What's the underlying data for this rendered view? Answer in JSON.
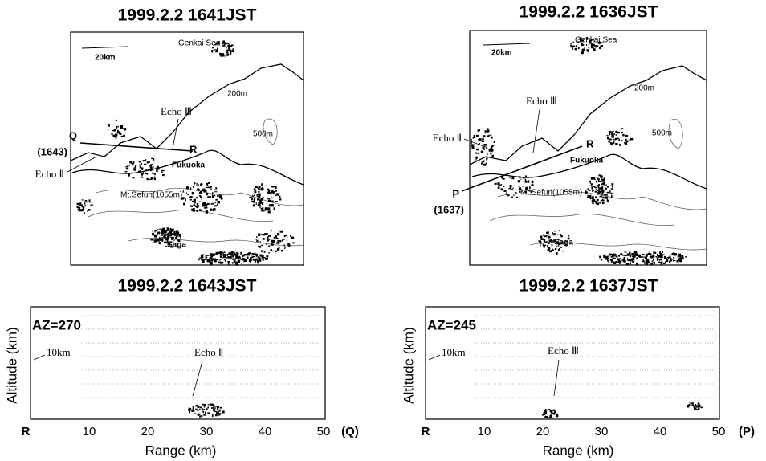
{
  "maps": [
    {
      "title": "1999.2.2 1641JST",
      "scale": "20km",
      "sea": "Genkai Sea",
      "h200": "200m",
      "h500": "500m",
      "echo3": "Echo Ⅲ",
      "echo2": "Echo Ⅱ",
      "end_a": "Q",
      "end_a_time": "(1643)",
      "end_b": "R",
      "city": "Fukuoka",
      "mountain": "Mt.Sefuri(1055m)",
      "city2": "Saga"
    },
    {
      "title": "1999.2.2 1636JST",
      "scale": "20km",
      "sea": "Genkai Sea",
      "h200": "200m",
      "h500": "500m",
      "echo3": "Echo Ⅲ",
      "echo2": "Echo Ⅱ",
      "end_a": "P",
      "end_a_time": "(1637)",
      "end_b": "R",
      "city": "Fukuoka",
      "mountain": "Mt.Sefuri(1055m)",
      "city2": "Saga"
    }
  ],
  "sections": [
    {
      "title": "1999.2.2 1643JST",
      "azimuth": "AZ=270",
      "height_mark": "10km",
      "echo": "Echo Ⅱ",
      "y_label": "Altitude (km)",
      "x_label": "Range (km)",
      "x_start": "R",
      "x_end": "(Q)",
      "xticks": [
        10,
        20,
        30,
        40,
        50
      ]
    },
    {
      "title": "1999.2.2 1637JST",
      "azimuth": "AZ=245",
      "height_mark": "10km",
      "echo": "Echo Ⅲ",
      "y_label": "Altitude (km)",
      "x_label": "Range (km)",
      "x_start": "R",
      "x_end": "(P)",
      "xticks": [
        10,
        20,
        30,
        40,
        50
      ]
    }
  ]
}
